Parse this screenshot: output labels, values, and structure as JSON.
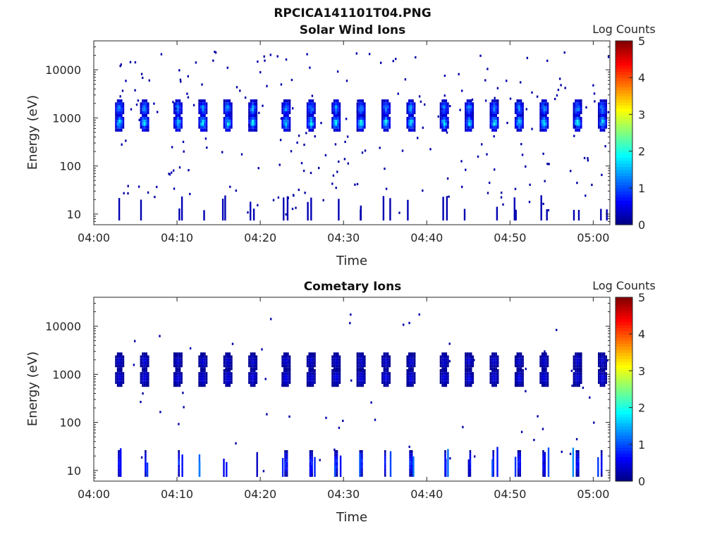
{
  "figure_title": "RPCICA141101T04.PNG",
  "chart_data": [
    {
      "type": "heatmap",
      "title": "Solar Wind Ions",
      "xlabel": "Time",
      "ylabel": "Energy (eV)",
      "yscale": "log",
      "xlim": [
        "04:00",
        "05:02"
      ],
      "ylim": [
        6,
        40000
      ],
      "x_ticks": [
        "04:00",
        "04:10",
        "04:20",
        "04:30",
        "04:40",
        "04:50",
        "05:00"
      ],
      "y_ticks": [
        "10",
        "100",
        "1000",
        "10000"
      ],
      "colorbar": {
        "label": "Log Counts",
        "min": 0,
        "max": 5,
        "ticks": [
          "0",
          "1",
          "2",
          "3",
          "4",
          "5"
        ],
        "colormap": "jet"
      },
      "sweep_period_min": 3.2,
      "bands": [
        {
          "name": "upper",
          "energy_eV": 1700,
          "peak_log_counts": 1.6
        },
        {
          "name": "lower",
          "energy_eV": 850,
          "peak_log_counts": 2.0
        }
      ],
      "sweep_times": [
        "04:03",
        "04:06",
        "04:10",
        "04:13",
        "04:16",
        "04:19",
        "04:23",
        "04:26",
        "04:29",
        "04:32",
        "04:35",
        "04:38",
        "04:42",
        "04:45",
        "04:48",
        "04:51",
        "04:54",
        "04:58",
        "05:01"
      ],
      "sparse_counts_log": 0.2
    },
    {
      "type": "heatmap",
      "title": "Cometary Ions",
      "xlabel": "Time",
      "ylabel": "Energy (eV)",
      "yscale": "log",
      "xlim": [
        "04:00",
        "05:02"
      ],
      "ylim": [
        6,
        40000
      ],
      "x_ticks": [
        "04:00",
        "04:10",
        "04:20",
        "04:30",
        "04:40",
        "04:50",
        "05:00"
      ],
      "y_ticks": [
        "10",
        "100",
        "1000",
        "10000"
      ],
      "colorbar": {
        "label": "Log Counts",
        "min": 0,
        "max": 5,
        "ticks": [
          "0",
          "1",
          "2",
          "3",
          "4",
          "5"
        ],
        "colormap": "jet"
      },
      "sweep_period_min": 3.2,
      "bands": [
        {
          "name": "upper",
          "energy_eV": 2000,
          "peak_log_counts": 0.5
        },
        {
          "name": "lower",
          "energy_eV": 900,
          "peak_log_counts": 0.6
        },
        {
          "name": "low-energy",
          "energy_eV": 15,
          "peak_log_counts": 1.3
        }
      ],
      "sweep_times": [
        "04:03",
        "04:06",
        "04:10",
        "04:13",
        "04:16",
        "04:19",
        "04:23",
        "04:26",
        "04:29",
        "04:32",
        "04:35",
        "04:38",
        "04:42",
        "04:45",
        "04:48",
        "04:51",
        "04:54",
        "04:58",
        "05:01"
      ],
      "sparse_counts_log": 0.2
    }
  ]
}
